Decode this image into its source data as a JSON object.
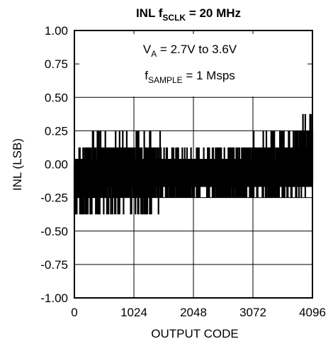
{
  "chart_data": {
    "type": "line",
    "title": {
      "prefix": "INL f",
      "sub": "SCLK",
      "suffix": " = 20 MHz"
    },
    "xlabel": "OUTPUT CODE",
    "ylabel": "INL (LSB)",
    "xlim": [
      0,
      4096
    ],
    "ylim": [
      -1.0,
      1.0
    ],
    "x_ticks": [
      0,
      1024,
      2048,
      3072,
      4096
    ],
    "x_tick_labels": [
      "0",
      "1024",
      "2048",
      "3072",
      "4096"
    ],
    "y_ticks": [
      1.0,
      0.75,
      0.5,
      0.25,
      0.0,
      -0.25,
      -0.5,
      -0.75,
      -1.0
    ],
    "y_tick_labels": [
      "1.00",
      "0.75",
      "0.50",
      "0.25",
      "0.00",
      "-0.25",
      "-0.50",
      "-0.75",
      "-1.00"
    ],
    "grid": true,
    "annotations": [
      {
        "main": "V",
        "sub": "A",
        "rest": " = 2.7V to 3.6V"
      },
      {
        "main": "f",
        "sub": "SAMPLE",
        "rest": " = 1 Msps"
      }
    ],
    "series": [
      {
        "style": "dense noisy band",
        "x": [
          0,
          256,
          512,
          768,
          1024,
          1280,
          1536,
          1792,
          2048,
          2304,
          2560,
          2816,
          3072,
          3328,
          3584,
          3840,
          4096
        ],
        "y_max": [
          0.1,
          0.2,
          0.27,
          0.27,
          0.2,
          0.27,
          0.2,
          0.1,
          0.1,
          0.1,
          0.1,
          0.15,
          0.2,
          0.2,
          0.28,
          0.3,
          0.46
        ],
        "y_min": [
          -0.45,
          -0.45,
          -0.38,
          -0.38,
          -0.38,
          -0.38,
          -0.3,
          -0.3,
          -0.25,
          -0.25,
          -0.28,
          -0.28,
          -0.3,
          -0.3,
          -0.3,
          -0.28,
          -0.2
        ]
      }
    ]
  }
}
